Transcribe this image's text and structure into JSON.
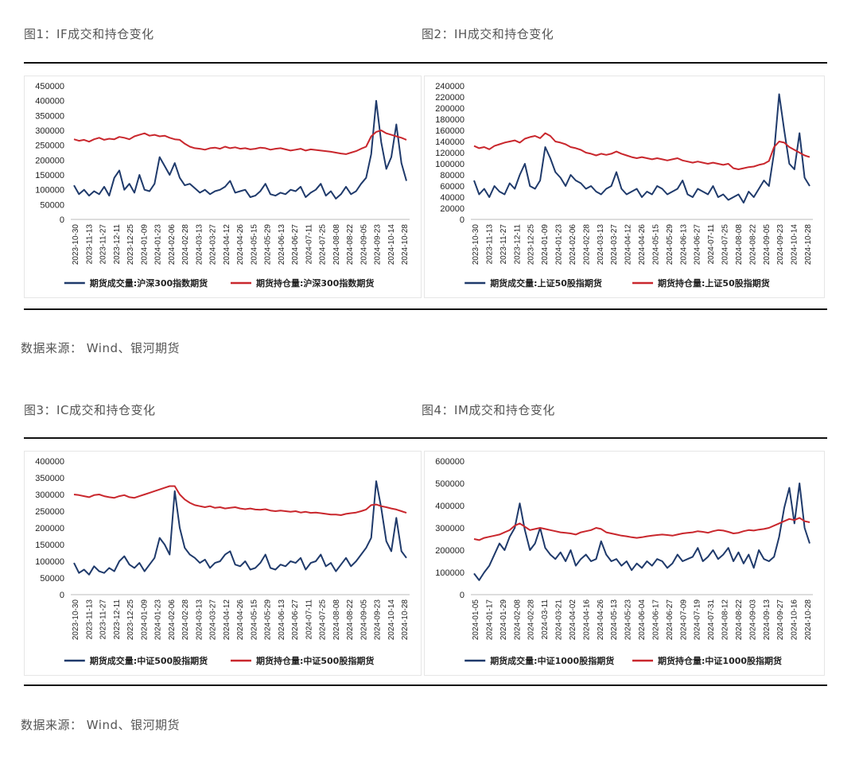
{
  "figures": [
    {
      "title": "图1：IF成交和持仓变化"
    },
    {
      "title": "图2：IH成交和持仓变化"
    },
    {
      "title": "图3：IC成交和持仓变化"
    },
    {
      "title": "图4：IM成交和持仓变化"
    }
  ],
  "sources": {
    "top": "数据来源：  Wind、银河期货",
    "bottom": "数据来源：  Wind、银河期货"
  },
  "colors": {
    "volume": "#1f3a6b",
    "oi": "#c9272d"
  },
  "chart_data": [
    {
      "type": "line",
      "ylim": [
        0,
        450000
      ],
      "yticks": [
        0,
        50000,
        100000,
        150000,
        200000,
        250000,
        300000,
        350000,
        400000,
        450000
      ],
      "xticks": [
        "2023-10-30",
        "2023-11-13",
        "2023-11-27",
        "2023-12-11",
        "2023-12-25",
        "2024-01-09",
        "2024-01-23",
        "2024-02-06",
        "2024-02-28",
        "2024-03-13",
        "2024-03-27",
        "2024-04-12",
        "2024-04-26",
        "2024-05-15",
        "2024-05-29",
        "2024-06-13",
        "2024-06-27",
        "2024-07-11",
        "2024-07-25",
        "2024-08-08",
        "2024-08-22",
        "2024-09-05",
        "2024-09-23",
        "2024-10-14",
        "2024-10-28"
      ],
      "series": [
        {
          "name": "期货成交量:沪深300指数期货",
          "values": [
            115000,
            85000,
            100000,
            80000,
            95000,
            85000,
            110000,
            80000,
            140000,
            165000,
            100000,
            120000,
            90000,
            150000,
            100000,
            95000,
            120000,
            210000,
            180000,
            150000,
            190000,
            140000,
            115000,
            120000,
            105000,
            90000,
            100000,
            85000,
            95000,
            100000,
            110000,
            130000,
            90000,
            95000,
            100000,
            75000,
            80000,
            95000,
            120000,
            85000,
            80000,
            90000,
            85000,
            100000,
            95000,
            110000,
            75000,
            90000,
            100000,
            120000,
            80000,
            95000,
            70000,
            85000,
            110000,
            85000,
            95000,
            120000,
            140000,
            220000,
            400000,
            260000,
            170000,
            210000,
            320000,
            190000,
            130000
          ]
        },
        {
          "name": "期货持仓量:沪深300指数期货",
          "values": [
            270000,
            265000,
            268000,
            262000,
            270000,
            275000,
            268000,
            272000,
            270000,
            278000,
            275000,
            270000,
            280000,
            285000,
            290000,
            282000,
            285000,
            280000,
            282000,
            275000,
            270000,
            268000,
            255000,
            245000,
            240000,
            238000,
            235000,
            240000,
            242000,
            238000,
            245000,
            240000,
            243000,
            238000,
            240000,
            236000,
            238000,
            242000,
            240000,
            235000,
            238000,
            240000,
            236000,
            232000,
            235000,
            238000,
            232000,
            236000,
            234000,
            232000,
            230000,
            228000,
            225000,
            222000,
            220000,
            225000,
            230000,
            238000,
            245000,
            280000,
            295000,
            300000,
            290000,
            285000,
            280000,
            275000,
            268000
          ]
        }
      ]
    },
    {
      "type": "line",
      "ylim": [
        0,
        240000
      ],
      "yticks": [
        0,
        20000,
        40000,
        60000,
        80000,
        100000,
        120000,
        140000,
        160000,
        180000,
        200000,
        220000,
        240000
      ],
      "xticks": [
        "2023-10-30",
        "2023-11-13",
        "2023-11-27",
        "2023-12-11",
        "2023-12-25",
        "2024-01-09",
        "2024-01-23",
        "2024-02-06",
        "2024-02-28",
        "2024-03-13",
        "2024-03-27",
        "2024-04-12",
        "2024-04-26",
        "2024-05-15",
        "2024-05-29",
        "2024-06-13",
        "2024-06-27",
        "2024-07-11",
        "2024-07-25",
        "2024-08-08",
        "2024-08-22",
        "2024-09-05",
        "2024-09-23",
        "2024-10-14",
        "2024-10-28"
      ],
      "series": [
        {
          "name": "期货成交量:上证50股指期货",
          "values": [
            70000,
            45000,
            55000,
            40000,
            60000,
            50000,
            45000,
            65000,
            55000,
            80000,
            100000,
            60000,
            55000,
            70000,
            130000,
            110000,
            85000,
            75000,
            60000,
            80000,
            70000,
            65000,
            55000,
            60000,
            50000,
            45000,
            55000,
            60000,
            85000,
            55000,
            45000,
            50000,
            55000,
            40000,
            50000,
            45000,
            60000,
            55000,
            45000,
            50000,
            55000,
            70000,
            45000,
            40000,
            55000,
            50000,
            45000,
            60000,
            40000,
            45000,
            35000,
            40000,
            45000,
            30000,
            50000,
            40000,
            55000,
            70000,
            60000,
            120000,
            225000,
            160000,
            100000,
            90000,
            155000,
            75000,
            60000
          ]
        },
        {
          "name": "期货持仓量:上证50股指期货",
          "values": [
            132000,
            128000,
            130000,
            126000,
            132000,
            135000,
            138000,
            140000,
            142000,
            138000,
            145000,
            148000,
            150000,
            146000,
            155000,
            150000,
            140000,
            138000,
            135000,
            130000,
            128000,
            125000,
            120000,
            118000,
            115000,
            118000,
            116000,
            118000,
            122000,
            118000,
            115000,
            112000,
            110000,
            112000,
            110000,
            108000,
            110000,
            108000,
            106000,
            108000,
            110000,
            106000,
            104000,
            102000,
            104000,
            102000,
            100000,
            102000,
            100000,
            98000,
            100000,
            92000,
            90000,
            92000,
            94000,
            95000,
            98000,
            100000,
            105000,
            130000,
            140000,
            138000,
            130000,
            125000,
            120000,
            115000,
            112000
          ]
        }
      ]
    },
    {
      "type": "line",
      "ylim": [
        0,
        400000
      ],
      "yticks": [
        0,
        50000,
        100000,
        150000,
        200000,
        250000,
        300000,
        350000,
        400000
      ],
      "xticks": [
        "2023-10-30",
        "2023-11-13",
        "2023-11-27",
        "2023-12-11",
        "2023-12-25",
        "2024-01-09",
        "2024-01-23",
        "2024-02-06",
        "2024-02-28",
        "2024-03-13",
        "2024-03-27",
        "2024-04-12",
        "2024-04-26",
        "2024-05-15",
        "2024-05-29",
        "2024-06-13",
        "2024-06-27",
        "2024-07-11",
        "2024-07-25",
        "2024-08-08",
        "2024-08-22",
        "2024-09-05",
        "2024-09-23",
        "2024-10-14",
        "2024-10-28"
      ],
      "series": [
        {
          "name": "期货成交量:中证500股指期货",
          "values": [
            95000,
            65000,
            75000,
            60000,
            85000,
            70000,
            65000,
            80000,
            70000,
            100000,
            115000,
            90000,
            80000,
            95000,
            70000,
            90000,
            110000,
            170000,
            150000,
            120000,
            310000,
            200000,
            140000,
            120000,
            110000,
            95000,
            105000,
            80000,
            95000,
            100000,
            120000,
            130000,
            90000,
            85000,
            100000,
            75000,
            80000,
            95000,
            120000,
            80000,
            75000,
            90000,
            85000,
            100000,
            95000,
            110000,
            75000,
            95000,
            100000,
            120000,
            85000,
            95000,
            70000,
            90000,
            110000,
            85000,
            100000,
            120000,
            140000,
            170000,
            340000,
            260000,
            160000,
            130000,
            230000,
            130000,
            110000
          ]
        },
        {
          "name": "期货持仓量:中证500股指期货",
          "values": [
            300000,
            298000,
            295000,
            292000,
            298000,
            300000,
            295000,
            292000,
            290000,
            295000,
            298000,
            292000,
            290000,
            295000,
            300000,
            305000,
            310000,
            315000,
            320000,
            325000,
            325000,
            300000,
            285000,
            275000,
            268000,
            265000,
            262000,
            265000,
            260000,
            262000,
            258000,
            260000,
            262000,
            258000,
            256000,
            258000,
            255000,
            254000,
            256000,
            252000,
            250000,
            252000,
            250000,
            248000,
            250000,
            246000,
            248000,
            245000,
            246000,
            244000,
            242000,
            240000,
            240000,
            238000,
            242000,
            244000,
            246000,
            250000,
            255000,
            268000,
            270000,
            265000,
            262000,
            258000,
            255000,
            250000,
            245000
          ]
        }
      ]
    },
    {
      "type": "line",
      "ylim": [
        0,
        600000
      ],
      "yticks": [
        0,
        100000,
        200000,
        300000,
        400000,
        500000,
        600000
      ],
      "xticks": [
        "2024-01-05",
        "2024-01-17",
        "2024-01-29",
        "2024-02-08",
        "2024-02-28",
        "2024-03-11",
        "2024-03-21",
        "2024-04-02",
        "2024-04-16",
        "2024-04-26",
        "2024-05-13",
        "2024-05-23",
        "2024-06-04",
        "2024-06-17",
        "2024-06-27",
        "2024-07-09",
        "2024-07-19",
        "2024-07-31",
        "2024-08-12",
        "2024-08-22",
        "2024-09-03",
        "2024-09-13",
        "2024-09-27",
        "2024-10-16",
        "2024-10-28"
      ],
      "series": [
        {
          "name": "期货成交量:中证1000股指期货",
          "values": [
            95000,
            65000,
            100000,
            130000,
            180000,
            230000,
            200000,
            260000,
            300000,
            410000,
            290000,
            200000,
            230000,
            300000,
            210000,
            180000,
            160000,
            190000,
            150000,
            200000,
            130000,
            160000,
            180000,
            150000,
            160000,
            240000,
            180000,
            150000,
            160000,
            130000,
            150000,
            110000,
            140000,
            120000,
            150000,
            130000,
            160000,
            150000,
            120000,
            140000,
            180000,
            150000,
            160000,
            170000,
            210000,
            150000,
            170000,
            200000,
            160000,
            180000,
            210000,
            150000,
            190000,
            140000,
            180000,
            120000,
            200000,
            160000,
            150000,
            170000,
            260000,
            390000,
            480000,
            320000,
            500000,
            300000,
            230000
          ]
        },
        {
          "name": "期货持仓量:中证1000股指期货",
          "values": [
            250000,
            245000,
            255000,
            260000,
            265000,
            270000,
            280000,
            290000,
            310000,
            320000,
            305000,
            290000,
            295000,
            300000,
            295000,
            290000,
            285000,
            280000,
            278000,
            275000,
            270000,
            280000,
            285000,
            290000,
            300000,
            295000,
            280000,
            275000,
            270000,
            265000,
            262000,
            258000,
            255000,
            258000,
            262000,
            265000,
            268000,
            270000,
            268000,
            265000,
            270000,
            275000,
            278000,
            280000,
            285000,
            282000,
            278000,
            285000,
            290000,
            288000,
            282000,
            275000,
            278000,
            285000,
            290000,
            288000,
            292000,
            295000,
            300000,
            310000,
            320000,
            330000,
            340000,
            335000,
            345000,
            330000,
            325000
          ]
        }
      ]
    }
  ]
}
